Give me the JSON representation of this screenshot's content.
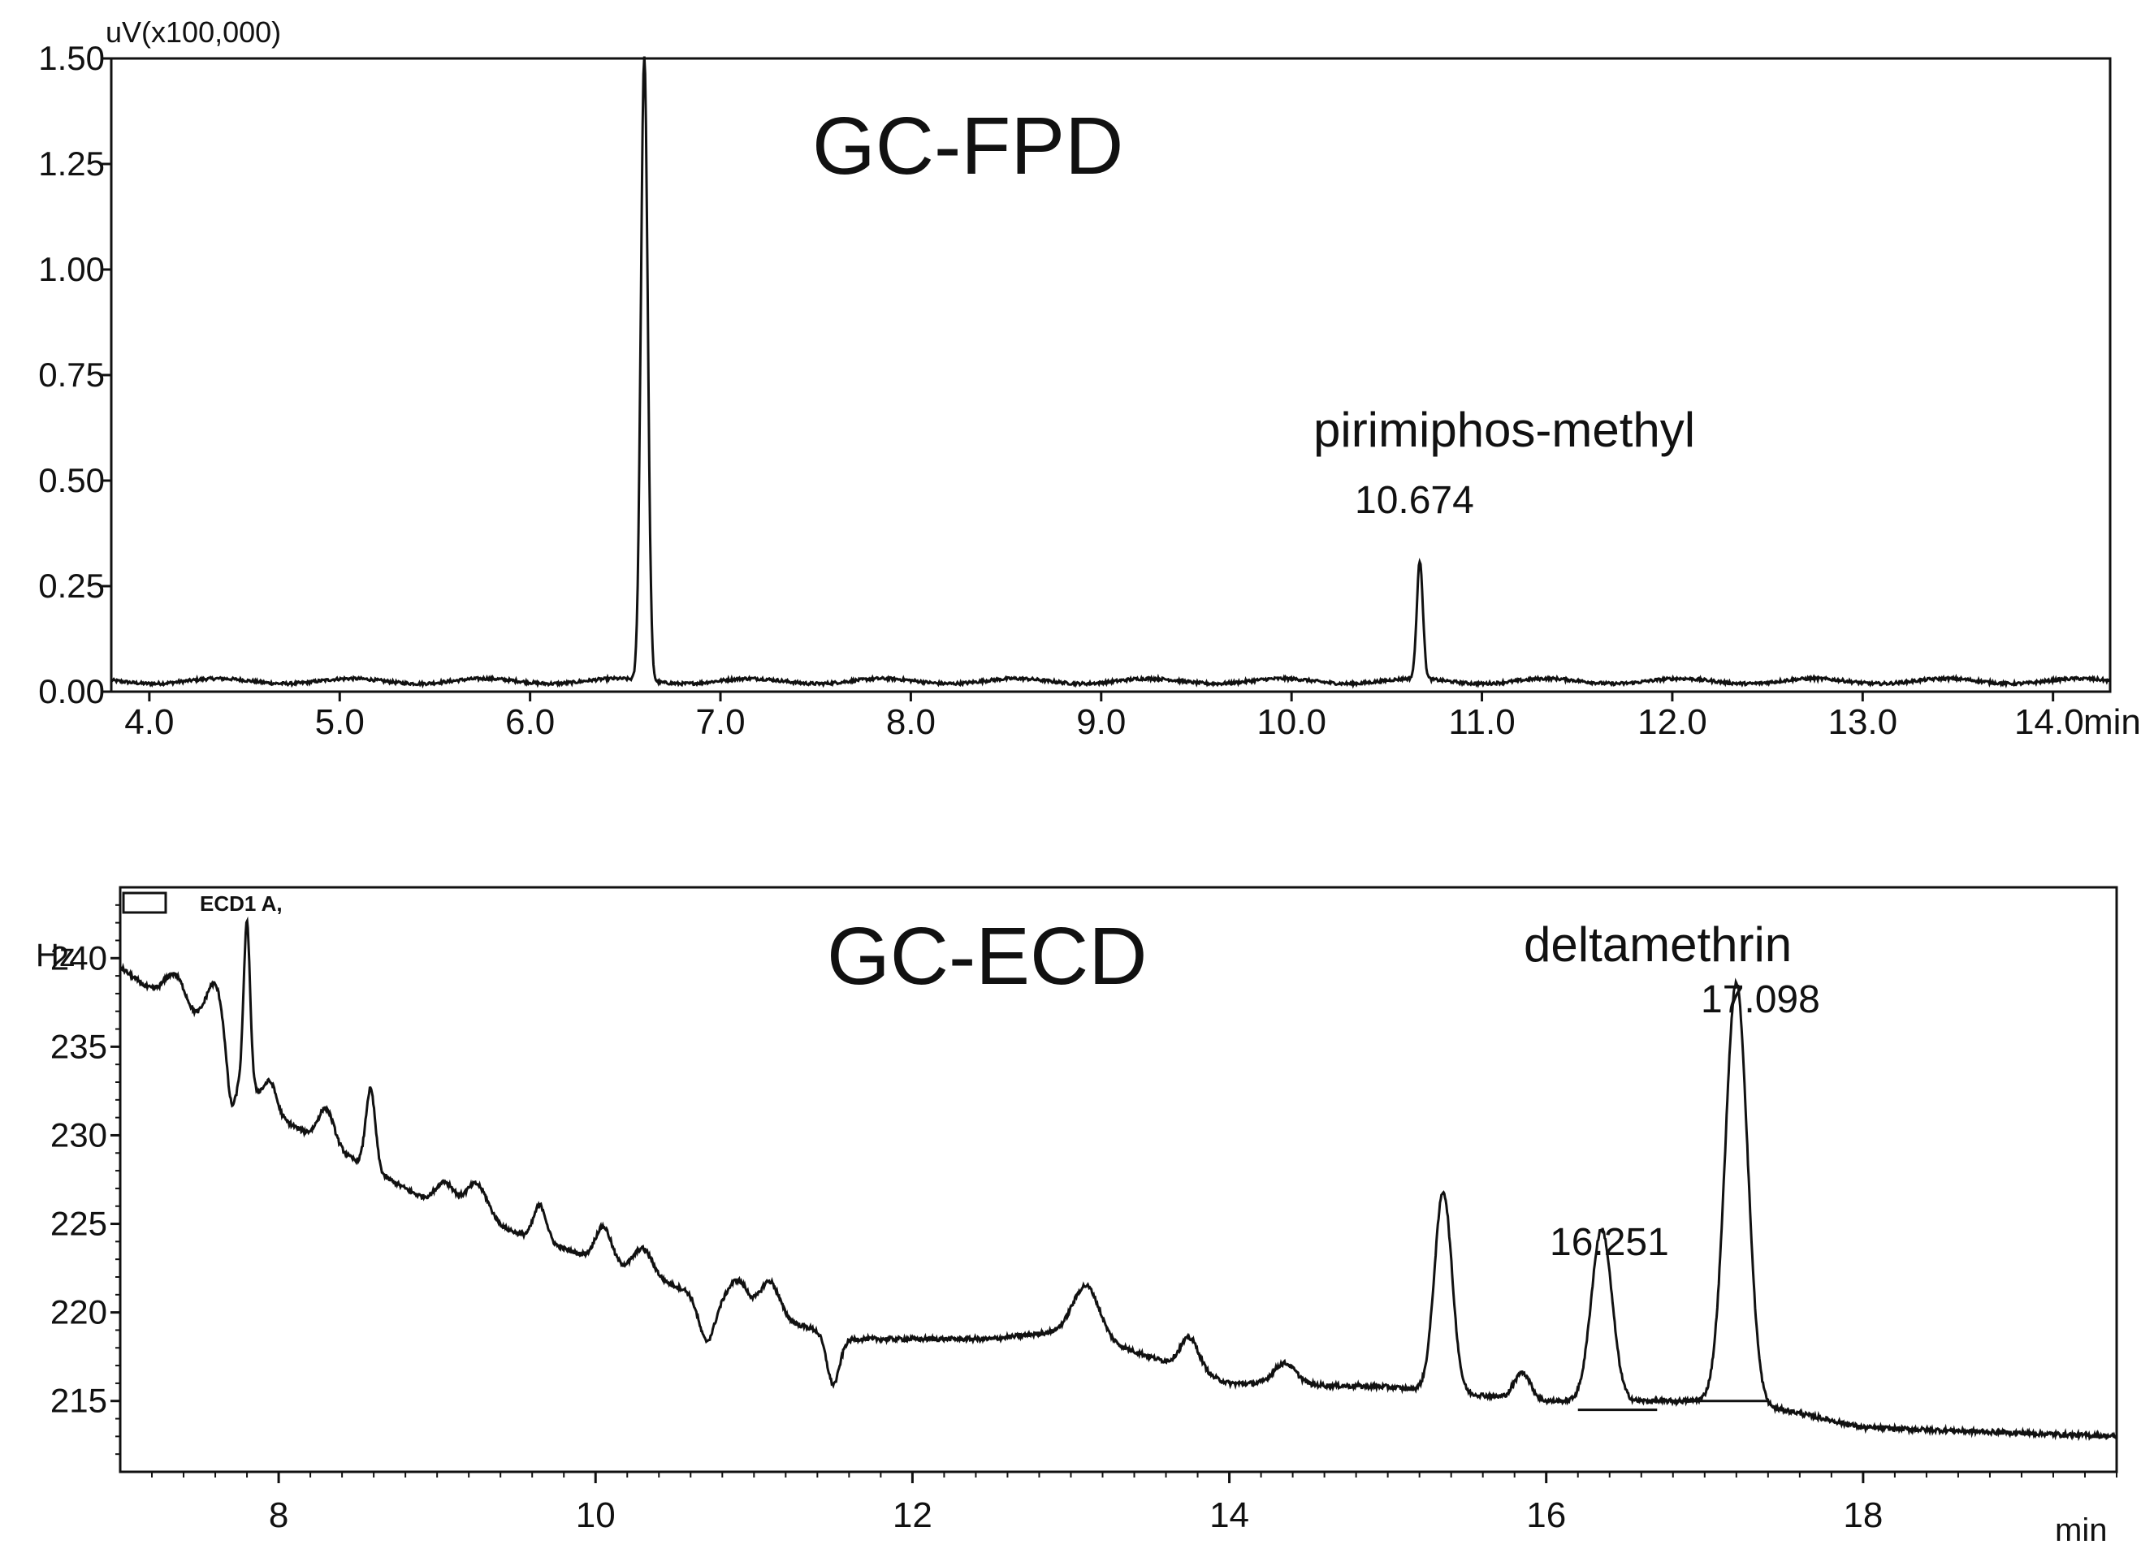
{
  "chart_data": [
    {
      "type": "line",
      "title": "GC-FPD",
      "ylabel": "uV(x100,000)",
      "xlabel": "min",
      "xlim": [
        3.8,
        14.3
      ],
      "ylim": [
        0.0,
        1.5
      ],
      "x_ticks": [
        4.0,
        5.0,
        6.0,
        7.0,
        8.0,
        9.0,
        10.0,
        11.0,
        12.0,
        13.0,
        14.0
      ],
      "x_tick_labels": [
        "4.0",
        "5.0",
        "6.0",
        "7.0",
        "8.0",
        "9.0",
        "10.0",
        "11.0",
        "12.0",
        "13.0",
        "14.0"
      ],
      "y_ticks": [
        0.0,
        0.25,
        0.5,
        0.75,
        1.0,
        1.25,
        1.5
      ],
      "y_tick_labels": [
        "0.00",
        "0.25",
        "0.50",
        "0.75",
        "1.00",
        "1.25",
        "1.50"
      ],
      "baseline": 0.025,
      "peaks": [
        {
          "x": 6.6,
          "height": 1.48,
          "width": 0.018
        },
        {
          "x": 10.674,
          "height": 0.28,
          "width": 0.016
        }
      ],
      "annotations": [
        {
          "text": "pirimiphos-methyl",
          "x": 11.4,
          "y": 0.6
        },
        {
          "text": "10.674",
          "x": 10.8,
          "y": 0.43
        }
      ]
    },
    {
      "type": "line",
      "title": "GC-ECD",
      "ylabel": "Hz",
      "xlabel": "min",
      "legend": "ECD1 A,",
      "xlim": [
        7.0,
        19.6
      ],
      "ylim": [
        211.0,
        244.0
      ],
      "x_ticks": [
        8,
        10,
        12,
        14,
        16,
        18
      ],
      "x_tick_labels": [
        "8",
        "10",
        "12",
        "14",
        "16",
        "18"
      ],
      "y_ticks": [
        215,
        220,
        225,
        230,
        235,
        240
      ],
      "y_tick_labels": [
        "215",
        "220",
        "225",
        "230",
        "235",
        "240"
      ],
      "baseline_points": [
        [
          7.0,
          239.5
        ],
        [
          7.5,
          236.0
        ],
        [
          8.0,
          231.0
        ],
        [
          9.0,
          226.0
        ],
        [
          10.0,
          223.0
        ],
        [
          11.0,
          220.0
        ],
        [
          11.6,
          218.5
        ],
        [
          12.5,
          218.5
        ],
        [
          13.0,
          219.0
        ],
        [
          13.5,
          217.5
        ],
        [
          14.0,
          216.0
        ],
        [
          15.0,
          215.8
        ],
        [
          16.0,
          215.0
        ],
        [
          17.0,
          215.0
        ],
        [
          17.5,
          214.5
        ],
        [
          18.0,
          213.5
        ],
        [
          19.6,
          213.0
        ]
      ],
      "peaks": [
        {
          "x": 7.35,
          "height": 2.0,
          "width": 0.07
        },
        {
          "x": 7.6,
          "height": 3.5,
          "width": 0.06
        },
        {
          "x": 7.8,
          "height": 9.0,
          "width": 0.02
        },
        {
          "x": 7.95,
          "height": 1.5,
          "width": 0.04
        },
        {
          "x": 8.3,
          "height": 2.0,
          "width": 0.05
        },
        {
          "x": 8.58,
          "height": 4.5,
          "width": 0.03
        },
        {
          "x": 9.05,
          "height": 1.5,
          "width": 0.06
        },
        {
          "x": 9.25,
          "height": 2.0,
          "width": 0.07
        },
        {
          "x": 9.65,
          "height": 2.0,
          "width": 0.04
        },
        {
          "x": 10.05,
          "height": 2.0,
          "width": 0.05
        },
        {
          "x": 10.3,
          "height": 1.5,
          "width": 0.06
        },
        {
          "x": 10.9,
          "height": 1.5,
          "width": 0.06
        },
        {
          "x": 11.1,
          "height": 2.0,
          "width": 0.06
        },
        {
          "x": 13.1,
          "height": 2.8,
          "width": 0.08
        },
        {
          "x": 13.75,
          "height": 1.8,
          "width": 0.06
        },
        {
          "x": 14.35,
          "height": 1.2,
          "width": 0.07
        },
        {
          "x": 15.35,
          "height": 11.3,
          "width": 0.055
        },
        {
          "x": 15.85,
          "height": 1.5,
          "width": 0.05
        },
        {
          "x": 16.35,
          "height": 9.7,
          "width": 0.065
        },
        {
          "x": 17.2,
          "height": 23.8,
          "width": 0.07
        }
      ],
      "dips": [
        {
          "x": 7.7,
          "depth": 3.0,
          "width": 0.03
        },
        {
          "x": 10.7,
          "depth": 2.5,
          "width": 0.05
        },
        {
          "x": 11.5,
          "depth": 2.8,
          "width": 0.04
        }
      ],
      "integration_baselines": [
        {
          "x1": 16.2,
          "x2": 16.7,
          "y": 214.5
        },
        {
          "x1": 16.8,
          "x2": 17.4,
          "y": 215.0
        }
      ],
      "annotations": [
        {
          "text": "deltamethrin",
          "x": 17.5,
          "y": 237.5
        },
        {
          "text": "17.098",
          "x": 17.5,
          "y": 234.0
        },
        {
          "text": "16.251",
          "x": 16.2,
          "y": 222.5
        }
      ]
    }
  ]
}
